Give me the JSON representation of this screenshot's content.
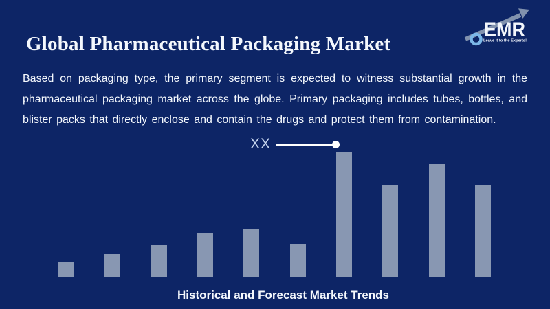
{
  "page": {
    "title": "Global Pharmaceutical Packaging Market",
    "description": "Based on packaging type, the primary segment is expected to witness substantial growth in the pharmaceutical packaging market across the globe. Primary packaging includes tubes, bottles, and blister packs that directly enclose and contain the drugs and protect them from contamination.",
    "caption": "Historical and Forecast Market Trends"
  },
  "logo": {
    "text": "EMR",
    "tagline": "Leave it to the Experts!"
  },
  "annotation": {
    "label": "XX"
  },
  "colors": {
    "background": "#0D2566",
    "bar": "#8897B2",
    "text": "#F4F8FD",
    "annotation": "#C7D6EF",
    "logo_arrow": "#8192AE",
    "logo_ring": "#7CB8E8"
  },
  "chart_data": {
    "type": "bar",
    "title": "Historical and Forecast Market Trends",
    "categories": [
      "",
      "",
      "",
      "",
      "",
      "",
      "",
      "",
      "",
      ""
    ],
    "values": [
      23,
      34,
      47,
      65,
      71,
      49,
      182,
      135,
      165,
      135
    ],
    "values_note": "relative bar heights; no axes, ticks or numeric labels are shown",
    "annotated_bar_index": 6,
    "annotation_label": "XX",
    "xlabel": "",
    "ylabel": "",
    "axes_visible": false,
    "grid": false,
    "legend": false
  }
}
